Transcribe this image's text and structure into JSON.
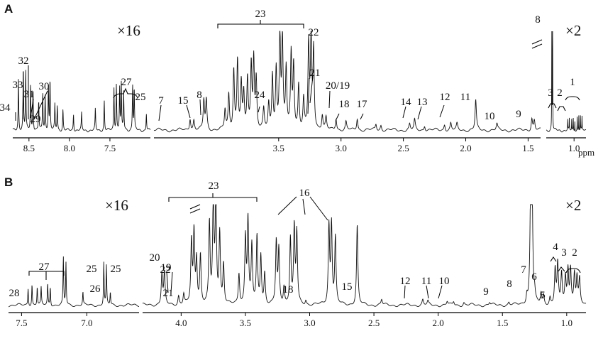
{
  "chart_data": [
    {
      "type": "line",
      "panel": "A",
      "xlabel": "ppm",
      "x_reversed": true,
      "segments": [
        {
          "xlim": [
            8.7,
            7.0
          ],
          "scale": "×16",
          "ticks": [
            "8.5",
            "8.0",
            "7.5"
          ],
          "peaks": [
            [
              8.63,
              0.6
            ],
            [
              8.57,
              0.75
            ],
            [
              8.54,
              0.7
            ],
            [
              8.48,
              0.55
            ],
            [
              8.45,
              0.5
            ],
            [
              8.38,
              0.35
            ],
            [
              8.33,
              0.45
            ],
            [
              8.3,
              0.4
            ],
            [
              8.26,
              0.55
            ],
            [
              8.24,
              0.6
            ],
            [
              8.18,
              0.3
            ],
            [
              8.15,
              0.3
            ],
            [
              8.08,
              0.25
            ],
            [
              7.95,
              0.2
            ],
            [
              7.85,
              0.2
            ],
            [
              7.68,
              0.25
            ],
            [
              7.57,
              0.35
            ],
            [
              7.45,
              0.5
            ],
            [
              7.42,
              0.55
            ],
            [
              7.38,
              0.5
            ],
            [
              7.36,
              0.55
            ],
            [
              7.33,
              0.45
            ],
            [
              7.22,
              0.55
            ],
            [
              7.2,
              0.5
            ],
            [
              7.05,
              0.2
            ]
          ]
        },
        {
          "xlim": [
            4.5,
            1.4
          ],
          "scale": "",
          "ticks": [
            "3.5",
            "3.0",
            "2.5",
            "2.0",
            "1.5"
          ],
          "peaks": [
            [
              4.21,
              0.12
            ],
            [
              4.18,
              0.1
            ],
            [
              4.1,
              0.3
            ],
            [
              4.08,
              0.3
            ],
            [
              3.93,
              0.2
            ],
            [
              3.9,
              0.35
            ],
            [
              3.86,
              0.6
            ],
            [
              3.83,
              0.7
            ],
            [
              3.8,
              0.45
            ],
            [
              3.78,
              0.35
            ],
            [
              3.75,
              0.5
            ],
            [
              3.72,
              0.65
            ],
            [
              3.7,
              0.7
            ],
            [
              3.68,
              0.5
            ],
            [
              3.62,
              0.2
            ],
            [
              3.58,
              0.25
            ],
            [
              3.55,
              0.55
            ],
            [
              3.52,
              0.6
            ],
            [
              3.49,
              0.95
            ],
            [
              3.47,
              0.9
            ],
            [
              3.44,
              0.6
            ],
            [
              3.4,
              0.75
            ],
            [
              3.38,
              0.65
            ],
            [
              3.34,
              0.45
            ],
            [
              3.3,
              0.3
            ],
            [
              3.26,
              0.85
            ],
            [
              3.24,
              0.9
            ],
            [
              3.22,
              0.8
            ],
            [
              3.15,
              0.15
            ],
            [
              3.12,
              0.12
            ],
            [
              3.04,
              0.12
            ],
            [
              2.96,
              0.08
            ],
            [
              2.87,
              0.12
            ],
            [
              2.72,
              0.06
            ],
            [
              2.68,
              0.05
            ],
            [
              2.45,
              0.06
            ],
            [
              2.41,
              0.1
            ],
            [
              2.33,
              0.05
            ],
            [
              2.17,
              0.06
            ],
            [
              2.12,
              0.07
            ],
            [
              2.07,
              0.06
            ],
            [
              1.92,
              0.3
            ],
            [
              1.75,
              0.06
            ],
            [
              1.47,
              0.12
            ],
            [
              1.45,
              0.1
            ]
          ]
        },
        {
          "xlim": [
            1.35,
            0.85
          ],
          "scale": "×2",
          "ticks": [
            "1.0"
          ],
          "peaks": [
            [
              1.28,
              1.2
            ],
            [
              1.27,
              1.2
            ],
            [
              1.08,
              0.12
            ],
            [
              1.06,
              0.13
            ],
            [
              1.03,
              0.13
            ],
            [
              1.01,
              0.14
            ],
            [
              0.99,
              0.12
            ],
            [
              0.96,
              0.16
            ],
            [
              0.94,
              0.18
            ],
            [
              0.92,
              0.17
            ],
            [
              0.9,
              0.15
            ]
          ]
        }
      ],
      "labels": [
        "34",
        "33",
        "32",
        "31",
        "30",
        "29",
        "27",
        "25",
        "7",
        "15",
        "8",
        "23",
        "24",
        "22",
        "21",
        "20/19",
        "18",
        "17",
        "14",
        "13",
        "12",
        "11",
        "10",
        "9",
        "8",
        "3",
        "2",
        "1"
      ]
    },
    {
      "type": "line",
      "panel": "B",
      "xlabel": "",
      "x_reversed": true,
      "segments": [
        {
          "xlim": [
            7.6,
            6.6
          ],
          "scale": "×16",
          "ticks": [
            "7.5",
            "7.0"
          ],
          "peaks": [
            [
              7.45,
              0.2
            ],
            [
              7.42,
              0.25
            ],
            [
              7.38,
              0.22
            ],
            [
              7.35,
              0.2
            ],
            [
              7.3,
              0.25
            ],
            [
              7.28,
              0.22
            ],
            [
              7.18,
              0.55
            ],
            [
              7.16,
              0.5
            ],
            [
              7.03,
              0.15
            ],
            [
              6.87,
              0.5
            ],
            [
              6.85,
              0.45
            ],
            [
              6.82,
              0.15
            ]
          ]
        },
        {
          "xlim": [
            4.3,
            0.85
          ],
          "scale": "×2",
          "ticks": [
            "4.0",
            "3.5",
            "3.0",
            "2.5",
            "2.0",
            "1.5",
            "1.0"
          ],
          "peaks": [
            [
              4.15,
              0.35
            ],
            [
              4.13,
              0.35
            ],
            [
              4.02,
              0.1
            ],
            [
              3.98,
              0.12
            ],
            [
              3.92,
              0.7
            ],
            [
              3.9,
              0.8
            ],
            [
              3.88,
              0.5
            ],
            [
              3.85,
              0.55
            ],
            [
              3.78,
              0.9
            ],
            [
              3.75,
              1.2
            ],
            [
              3.73,
              1.2
            ],
            [
              3.7,
              0.8
            ],
            [
              3.67,
              0.45
            ],
            [
              3.55,
              0.35
            ],
            [
              3.5,
              0.75
            ],
            [
              3.48,
              0.95
            ],
            [
              3.45,
              0.65
            ],
            [
              3.41,
              0.75
            ],
            [
              3.38,
              0.55
            ],
            [
              3.35,
              0.35
            ],
            [
              3.26,
              0.7
            ],
            [
              3.24,
              0.6
            ],
            [
              3.2,
              0.2
            ],
            [
              3.15,
              0.75
            ],
            [
              3.12,
              0.85
            ],
            [
              3.1,
              0.8
            ],
            [
              3.03,
              0.05
            ],
            [
              2.85,
              0.88
            ],
            [
              2.83,
              0.9
            ],
            [
              2.8,
              0.75
            ],
            [
              2.63,
              0.9
            ],
            [
              2.44,
              0.06
            ],
            [
              2.12,
              0.06
            ],
            [
              2.08,
              0.04
            ],
            [
              1.93,
              0.04
            ],
            [
              1.88,
              0.04
            ],
            [
              1.8,
              0.03
            ],
            [
              1.6,
              0.03
            ],
            [
              1.45,
              0.03
            ],
            [
              1.31,
              0.1
            ],
            [
              1.28,
              1.3
            ],
            [
              1.27,
              1.3
            ],
            [
              1.25,
              0.1
            ],
            [
              1.2,
              0.12
            ],
            [
              1.18,
              0.1
            ],
            [
              1.13,
              0.08
            ],
            [
              1.09,
              0.4
            ],
            [
              1.07,
              0.45
            ],
            [
              1.04,
              0.35
            ],
            [
              1.01,
              0.3
            ],
            [
              0.99,
              0.4
            ],
            [
              0.97,
              0.4
            ],
            [
              0.94,
              0.35
            ],
            [
              0.92,
              0.3
            ],
            [
              0.9,
              0.28
            ]
          ]
        }
      ],
      "labels": [
        "28",
        "27",
        "25",
        "26",
        "25",
        "20",
        "19",
        "23",
        "22",
        "21",
        "18",
        "16",
        "15",
        "12",
        "11",
        "10",
        "9",
        "8",
        "7",
        "6",
        "5",
        "4",
        "3",
        "2",
        "1"
      ]
    }
  ]
}
